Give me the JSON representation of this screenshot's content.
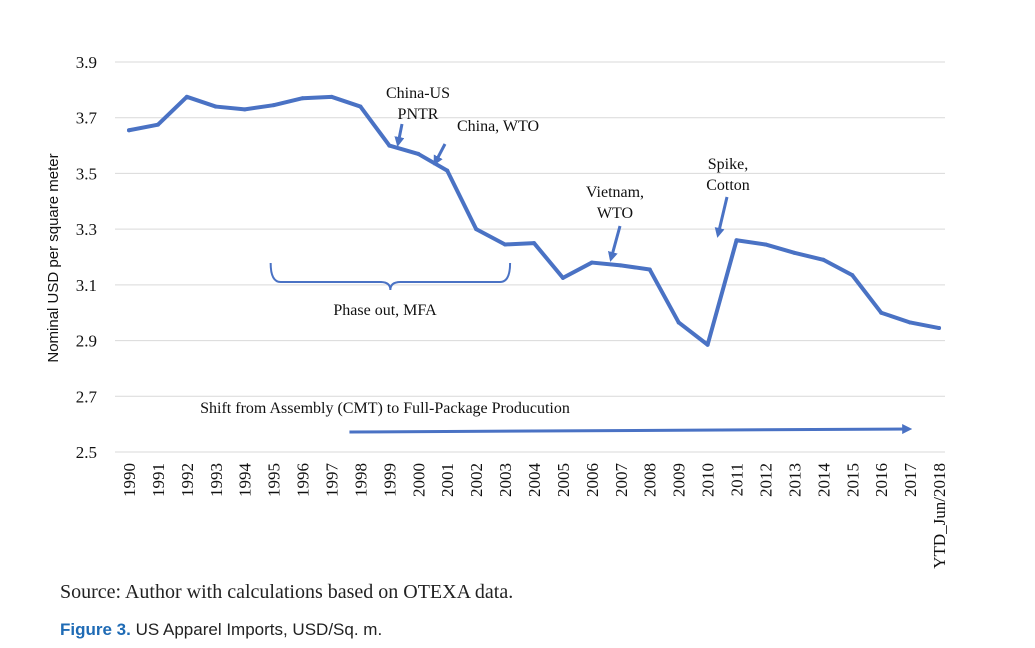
{
  "chart_data": {
    "type": "line",
    "ylabel": "Nominal USD per square meter",
    "ylim": [
      2.5,
      3.9
    ],
    "y_ticks": [
      "3.9",
      "3.7",
      "3.5",
      "3.3",
      "3.1",
      "2.9",
      "2.7",
      "2.5"
    ],
    "categories": [
      "1990",
      "1991",
      "1992",
      "1993",
      "1994",
      "1995",
      "1996",
      "1997",
      "1998",
      "1999",
      "2000",
      "2001",
      "2002",
      "2003",
      "2004",
      "2005",
      "2006",
      "2007",
      "2008",
      "2009",
      "2010",
      "2011",
      "2012",
      "2013",
      "2014",
      "2015",
      "2016",
      "2017",
      "YTD_Jun/2018"
    ],
    "series": [
      {
        "values": [
          3.655,
          3.675,
          3.775,
          3.74,
          3.73,
          3.745,
          3.77,
          3.775,
          3.74,
          3.6,
          3.57,
          3.51,
          3.3,
          3.245,
          3.25,
          3.125,
          3.18,
          3.17,
          3.155,
          2.965,
          2.885,
          3.26,
          3.245,
          3.215,
          3.19,
          3.135,
          3.0,
          2.965,
          2.945
        ]
      }
    ],
    "grid": "horizontal",
    "line_color": "#4a72c4",
    "annotations": [
      {
        "lines": [
          "China-US",
          "PNTR"
        ],
        "target": "1999"
      },
      {
        "lines": [
          "China, WTO"
        ],
        "target": "2001"
      },
      {
        "lines": [
          "Vietnam,",
          "WTO"
        ],
        "target": "2007"
      },
      {
        "lines": [
          "Spike,",
          "Cotton"
        ],
        "target": "2011"
      },
      {
        "lines": [
          "Phase out, MFA"
        ],
        "bracket_from": "1995",
        "bracket_to": "2003"
      },
      {
        "lines": [
          "Shift from Assembly (CMT)  to Full-Package Producution"
        ],
        "arrow_from": "1998",
        "arrow_to": "2016"
      }
    ],
    "source": "Source: Author with calculations based on OTEXA data."
  },
  "caption": {
    "figure_label": "Figure 3.",
    "text": "US Apparel Imports, USD/Sq. m."
  }
}
